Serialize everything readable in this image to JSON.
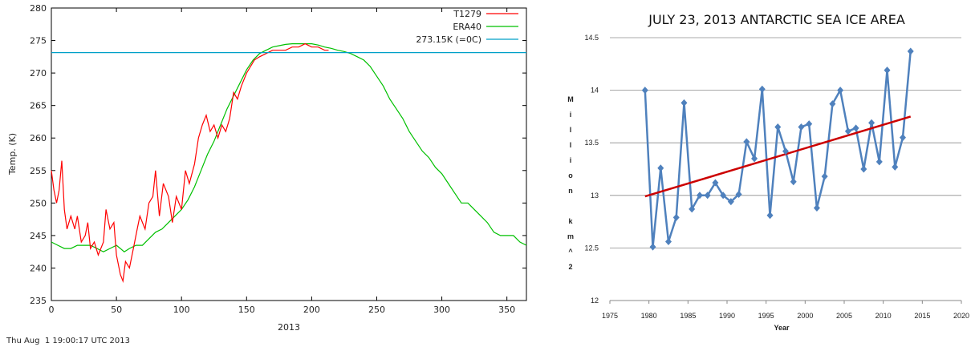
{
  "footer": {
    "timestamp": "Thu Aug  1 19:00:17 UTC 2013"
  },
  "chart_data": [
    {
      "type": "line",
      "title": "",
      "xlabel": "2013",
      "ylabel": "Temp. (K)",
      "xlim": [
        0,
        365
      ],
      "ylim": [
        235,
        280
      ],
      "xticks": [
        "0",
        "50",
        "100",
        "150",
        "200",
        "250",
        "300",
        "350"
      ],
      "yticks": [
        "235",
        "240",
        "245",
        "250",
        "255",
        "260",
        "265",
        "270",
        "275",
        "280"
      ],
      "grid": false,
      "legend": "top-right",
      "series": [
        {
          "name": "T1279",
          "color": "#ff0000",
          "points": [
            [
              0,
              255
            ],
            [
              2,
              252
            ],
            [
              4,
              250
            ],
            [
              6,
              252
            ],
            [
              8,
              256.5
            ],
            [
              10,
              249
            ],
            [
              12,
              246
            ],
            [
              15,
              248
            ],
            [
              18,
              246
            ],
            [
              20,
              248
            ],
            [
              23,
              244
            ],
            [
              26,
              245
            ],
            [
              28,
              247
            ],
            [
              30,
              243
            ],
            [
              33,
              244
            ],
            [
              36,
              242
            ],
            [
              40,
              244
            ],
            [
              42,
              249
            ],
            [
              45,
              246
            ],
            [
              48,
              247
            ],
            [
              50,
              242
            ],
            [
              53,
              239
            ],
            [
              55,
              238
            ],
            [
              57,
              241
            ],
            [
              60,
              240
            ],
            [
              63,
              243
            ],
            [
              66,
              246
            ],
            [
              68,
              248
            ],
            [
              72,
              246
            ],
            [
              75,
              250
            ],
            [
              78,
              251
            ],
            [
              80,
              255
            ],
            [
              83,
              248
            ],
            [
              86,
              253
            ],
            [
              90,
              251
            ],
            [
              93,
              247
            ],
            [
              96,
              251
            ],
            [
              100,
              249
            ],
            [
              103,
              255
            ],
            [
              106,
              253
            ],
            [
              110,
              256
            ],
            [
              113,
              260
            ],
            [
              116,
              262
            ],
            [
              119,
              263.5
            ],
            [
              122,
              261
            ],
            [
              125,
              262
            ],
            [
              128,
              260
            ],
            [
              131,
              262
            ],
            [
              134,
              261
            ],
            [
              137,
              263
            ],
            [
              140,
              267
            ],
            [
              143,
              266
            ],
            [
              146,
              268
            ],
            [
              150,
              270
            ],
            [
              153,
              271
            ],
            [
              156,
              272
            ],
            [
              160,
              272.5
            ],
            [
              165,
              273
            ],
            [
              170,
              273.5
            ],
            [
              175,
              273.5
            ],
            [
              180,
              273.5
            ],
            [
              185,
              274
            ],
            [
              190,
              274
            ],
            [
              195,
              274.5
            ],
            [
              200,
              274
            ],
            [
              205,
              274
            ],
            [
              210,
              273.5
            ],
            [
              213,
              273.5
            ]
          ]
        },
        {
          "name": "ERA40",
          "color": "#00c000",
          "points": [
            [
              0,
              244
            ],
            [
              5,
              243.5
            ],
            [
              10,
              243
            ],
            [
              15,
              243
            ],
            [
              20,
              243.5
            ],
            [
              25,
              243.5
            ],
            [
              30,
              243.5
            ],
            [
              35,
              243
            ],
            [
              40,
              242.5
            ],
            [
              45,
              243
            ],
            [
              50,
              243.5
            ],
            [
              53,
              243
            ],
            [
              56,
              242.5
            ],
            [
              60,
              243
            ],
            [
              65,
              243.5
            ],
            [
              70,
              243.5
            ],
            [
              75,
              244.5
            ],
            [
              80,
              245.5
            ],
            [
              85,
              246
            ],
            [
              90,
              247
            ],
            [
              95,
              248
            ],
            [
              100,
              249
            ],
            [
              105,
              250.5
            ],
            [
              110,
              252.5
            ],
            [
              115,
              255
            ],
            [
              120,
              257.5
            ],
            [
              125,
              259.5
            ],
            [
              130,
              262
            ],
            [
              135,
              264.5
            ],
            [
              140,
              266.5
            ],
            [
              145,
              268.5
            ],
            [
              150,
              270.5
            ],
            [
              155,
              272
            ],
            [
              160,
              273
            ],
            [
              165,
              273.5
            ],
            [
              170,
              274
            ],
            [
              175,
              274.2
            ],
            [
              180,
              274.4
            ],
            [
              185,
              274.5
            ],
            [
              190,
              274.5
            ],
            [
              195,
              274.5
            ],
            [
              200,
              274.5
            ],
            [
              205,
              274.3
            ],
            [
              210,
              274
            ],
            [
              215,
              273.8
            ],
            [
              220,
              273.5
            ],
            [
              225,
              273.3
            ],
            [
              230,
              273
            ],
            [
              235,
              272.5
            ],
            [
              240,
              272
            ],
            [
              245,
              271
            ],
            [
              250,
              269.5
            ],
            [
              255,
              268
            ],
            [
              260,
              266
            ],
            [
              265,
              264.5
            ],
            [
              270,
              263
            ],
            [
              275,
              261
            ],
            [
              280,
              259.5
            ],
            [
              285,
              258
            ],
            [
              290,
              257
            ],
            [
              295,
              255.5
            ],
            [
              300,
              254.5
            ],
            [
              305,
              253
            ],
            [
              310,
              251.5
            ],
            [
              315,
              250
            ],
            [
              320,
              250
            ],
            [
              325,
              249
            ],
            [
              330,
              248
            ],
            [
              335,
              247
            ],
            [
              340,
              245.5
            ],
            [
              345,
              245
            ],
            [
              350,
              245
            ],
            [
              355,
              245
            ],
            [
              360,
              244
            ],
            [
              365,
              243.5
            ]
          ]
        },
        {
          "name": "273.15K (=0C)",
          "color": "#00a0c8",
          "points": [
            [
              0,
              273.15
            ],
            [
              365,
              273.15
            ]
          ]
        }
      ]
    },
    {
      "type": "line",
      "title": "JULY 23, 2013 ANTARCTIC SEA ICE AREA",
      "xlabel": "Year",
      "ylabel": "Million km^2",
      "xlim": [
        1975,
        2020
      ],
      "ylim": [
        12,
        14.5
      ],
      "xticks": [
        "1975",
        "1980",
        "1985",
        "1990",
        "1995",
        "2000",
        "2005",
        "2010",
        "2015",
        "2020"
      ],
      "yticks": [
        "12",
        "12.5",
        "13",
        "13.5",
        "14",
        "14.5"
      ],
      "grid": true,
      "legend": "none",
      "series": [
        {
          "color": "#4f81bd",
          "points": [
            [
              1979.5,
              14.0
            ],
            [
              1980.5,
              12.51
            ],
            [
              1981.5,
              13.26
            ],
            [
              1982.5,
              12.56
            ],
            [
              1983.5,
              12.79
            ],
            [
              1984.5,
              13.88
            ],
            [
              1985.5,
              12.87
            ],
            [
              1986.5,
              13.0
            ],
            [
              1987.5,
              13.0
            ],
            [
              1988.5,
              13.12
            ],
            [
              1989.5,
              13.0
            ],
            [
              1990.5,
              12.94
            ],
            [
              1991.5,
              13.01
            ],
            [
              1992.5,
              13.51
            ],
            [
              1993.5,
              13.35
            ],
            [
              1994.5,
              14.01
            ],
            [
              1995.5,
              12.81
            ],
            [
              1996.5,
              13.65
            ],
            [
              1997.5,
              13.42
            ],
            [
              1998.5,
              13.13
            ],
            [
              1999.5,
              13.65
            ],
            [
              2000.5,
              13.68
            ],
            [
              2001.5,
              12.88
            ],
            [
              2002.5,
              13.18
            ],
            [
              2003.5,
              13.87
            ],
            [
              2004.5,
              14.0
            ],
            [
              2005.5,
              13.61
            ],
            [
              2006.5,
              13.64
            ],
            [
              2007.5,
              13.25
            ],
            [
              2008.5,
              13.69
            ],
            [
              2009.5,
              13.32
            ],
            [
              2010.5,
              14.19
            ],
            [
              2011.5,
              13.27
            ],
            [
              2012.5,
              13.55
            ],
            [
              2013.5,
              14.37
            ]
          ]
        },
        {
          "color": "#cc0000",
          "points": [
            [
              1979.5,
              12.99
            ],
            [
              2013.5,
              13.75
            ]
          ]
        }
      ]
    }
  ]
}
